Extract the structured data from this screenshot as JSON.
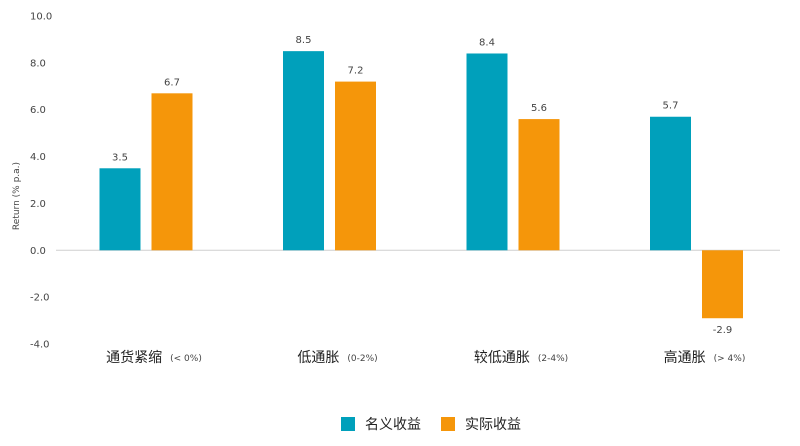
{
  "chart_data": {
    "type": "bar",
    "ylabel": "Return (% p.a.)",
    "ylim": [
      -4.0,
      10.0
    ],
    "yticks": [
      "10.0",
      "8.0",
      "6.0",
      "4.0",
      "2.0",
      "0.0",
      "-2.0",
      "-4.0"
    ],
    "categories": [
      {
        "name": "通货紧缩",
        "note": "(< 0%)"
      },
      {
        "name": "低通胀",
        "note": "(0-2%)"
      },
      {
        "name": "较低通胀",
        "note": "(2-4%)"
      },
      {
        "name": "高通胀",
        "note": "(> 4%)"
      }
    ],
    "series": [
      {
        "name": "名义收益",
        "color": "#00a0bb",
        "values": [
          3.5,
          8.5,
          8.4,
          5.7
        ],
        "labels": [
          "3.5",
          "8.5",
          "8.4",
          "5.7"
        ]
      },
      {
        "name": "实际收益",
        "color": "#f5960a",
        "values": [
          6.7,
          7.2,
          5.6,
          -2.9
        ],
        "labels": [
          "6.7",
          "7.2",
          "5.6",
          "-2.9"
        ]
      }
    ],
    "grid": false,
    "legend": "bottom-center"
  }
}
